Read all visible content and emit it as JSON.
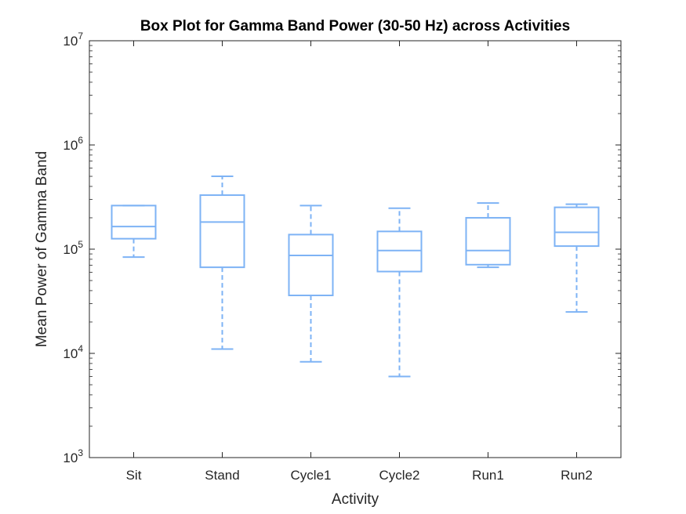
{
  "chart_data": {
    "type": "boxplot",
    "title": "Box Plot for Gamma Band Power (30-50 Hz) across Activities",
    "xlabel": "Activity",
    "ylabel": "Mean Power of Gamma Band",
    "yscale": "log",
    "ylim": [
      1000,
      10000000
    ],
    "ytick_labels": [
      {
        "base": "10",
        "exp": "3"
      },
      {
        "base": "10",
        "exp": "4"
      },
      {
        "base": "10",
        "exp": "5"
      },
      {
        "base": "10",
        "exp": "6"
      },
      {
        "base": "10",
        "exp": "7"
      }
    ],
    "ytick_values": [
      1000,
      10000,
      100000,
      1000000,
      10000000
    ],
    "categories": [
      "Sit",
      "Stand",
      "Cycle1",
      "Cycle2",
      "Run1",
      "Run2"
    ],
    "boxes": [
      {
        "whisker_low": 84000,
        "q1": 126000,
        "median": 165000,
        "q3": 262000,
        "whisker_high": 262000
      },
      {
        "whisker_low": 11000,
        "q1": 67000,
        "median": 182000,
        "q3": 330000,
        "whisker_high": 500000
      },
      {
        "whisker_low": 8300,
        "q1": 36000,
        "median": 87000,
        "q3": 138000,
        "whisker_high": 262000
      },
      {
        "whisker_low": 6000,
        "q1": 61000,
        "median": 97000,
        "q3": 148000,
        "whisker_high": 247000
      },
      {
        "whisker_low": 67000,
        "q1": 71000,
        "median": 97000,
        "q3": 200000,
        "whisker_high": 277000
      },
      {
        "whisker_low": 25000,
        "q1": 107000,
        "median": 145000,
        "q3": 252000,
        "whisker_high": 270000
      }
    ],
    "box_color": "#7eb3f5",
    "grid": false,
    "legend": "none"
  }
}
